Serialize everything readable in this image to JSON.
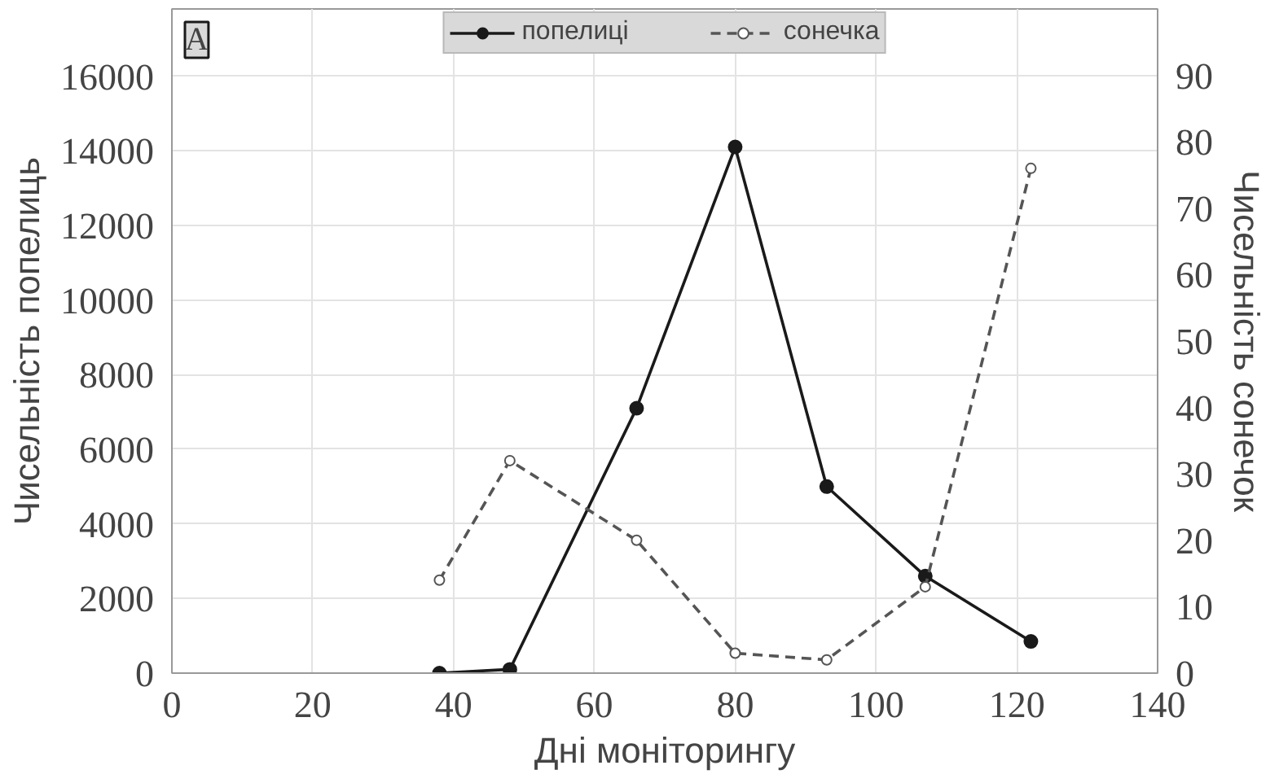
{
  "chart_data": {
    "type": "line",
    "xlabel": "Дні моніторингу",
    "ylabel": "Чисельність попелиць",
    "y2label": "Чисельність сонечок",
    "annotations": [
      "A"
    ],
    "x": [
      38,
      48,
      66,
      80,
      93,
      107,
      122
    ],
    "series": [
      {
        "name": "попелиці",
        "color": "#1a1a1a",
        "values": [
          0,
          100,
          7100,
          14100,
          5000,
          2600,
          850
        ],
        "marker": "circle",
        "line_style": "solid"
      },
      {
        "name": "сонечка",
        "color": "#555555",
        "values": [
          14,
          32,
          20,
          3,
          2,
          13,
          76
        ],
        "axis": "y2",
        "marker": "circle",
        "line_style": "dashed"
      }
    ],
    "xlim": [
      0,
      140
    ],
    "xticks": [
      0,
      20,
      40,
      60,
      80,
      100,
      120,
      140
    ],
    "ylim": [
      0,
      17800
    ],
    "yticks": [
      0,
      2000,
      4000,
      6000,
      8000,
      10000,
      12000,
      14000,
      16000
    ],
    "y2lim": [
      0,
      100
    ],
    "y2ticks": [
      0,
      10,
      20,
      30,
      40,
      50,
      60,
      70,
      80,
      90
    ],
    "grid": true,
    "legend": "top"
  }
}
